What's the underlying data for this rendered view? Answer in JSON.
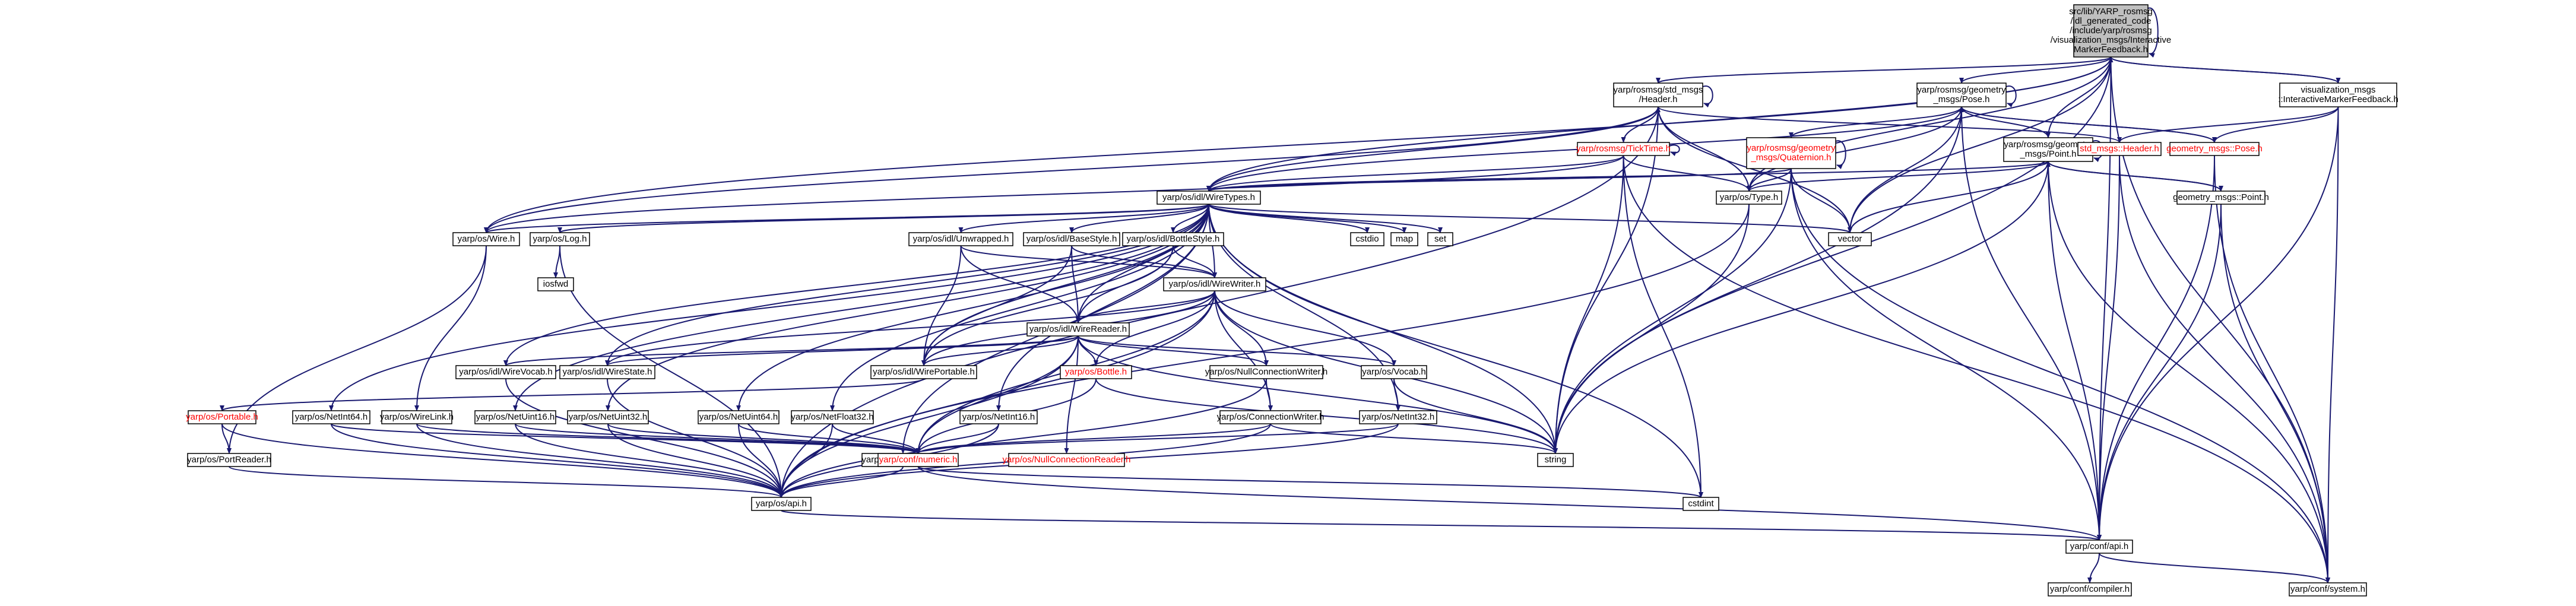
{
  "colors": {
    "edge": "#191970",
    "node_fill": "#ffffff",
    "root_fill": "#bfbfbf",
    "node_border": "#000000",
    "plain_border": "#bfbfbf",
    "red_text": "#ff0000"
  },
  "nodes": [
    {
      "id": "root",
      "lines": [
        "src/lib/YARP_rosmsg",
        "/idl_generated_code",
        "/include/yarp/rosmsg",
        "/visualization_msgs/Interactive",
        "MarkerFeedback.h"
      ],
      "style": "root"
    },
    {
      "id": "vm_imf",
      "lines": [
        "visualization_msgs",
        "::InteractiveMarkerFeedback.h"
      ],
      "style": "normal"
    },
    {
      "id": "std_header",
      "lines": [
        "yarp/rosmsg/std_msgs",
        "/Header.h"
      ],
      "style": "normal"
    },
    {
      "id": "geo_pose",
      "lines": [
        "yarp/rosmsg/geometry",
        "_msgs/Pose.h"
      ],
      "style": "normal"
    },
    {
      "id": "geo_point",
      "lines": [
        "yarp/rosmsg/geometry",
        "_msgs/Point.h"
      ],
      "style": "normal"
    },
    {
      "id": "geo_quat",
      "lines": [
        "yarp/rosmsg/geometry",
        "_msgs/Quaternion.h"
      ],
      "style": "red"
    },
    {
      "id": "ticktime",
      "lines": [
        "yarp/rosmsg/TickTime.h"
      ],
      "style": "red"
    },
    {
      "id": "std_msgs_header",
      "lines": [
        "std_msgs::Header.h"
      ],
      "style": "red"
    },
    {
      "id": "gm_pose",
      "lines": [
        "geometry_msgs::Pose.h"
      ],
      "style": "red"
    },
    {
      "id": "gm_point",
      "lines": [
        "geometry_msgs::Point.h"
      ],
      "style": "normal"
    },
    {
      "id": "type",
      "lines": [
        "yarp/os/Type.h"
      ],
      "style": "normal"
    },
    {
      "id": "vector",
      "lines": [
        "vector"
      ],
      "style": "plain"
    },
    {
      "id": "wiretypes",
      "lines": [
        "yarp/os/idl/WireTypes.h"
      ],
      "style": "normal"
    },
    {
      "id": "wire",
      "lines": [
        "yarp/os/Wire.h"
      ],
      "style": "normal"
    },
    {
      "id": "log",
      "lines": [
        "yarp/os/Log.h"
      ],
      "style": "normal"
    },
    {
      "id": "iosfwd",
      "lines": [
        "iosfwd"
      ],
      "style": "plain"
    },
    {
      "id": "unwrapped",
      "lines": [
        "yarp/os/idl/Unwrapped.h"
      ],
      "style": "normal"
    },
    {
      "id": "basestyle",
      "lines": [
        "yarp/os/idl/BaseStyle.h"
      ],
      "style": "normal"
    },
    {
      "id": "bottlestyle",
      "lines": [
        "yarp/os/idl/BottleStyle.h"
      ],
      "style": "normal"
    },
    {
      "id": "cstdio",
      "lines": [
        "cstdio"
      ],
      "style": "plain"
    },
    {
      "id": "map",
      "lines": [
        "map"
      ],
      "style": "plain"
    },
    {
      "id": "set",
      "lines": [
        "set"
      ],
      "style": "plain"
    },
    {
      "id": "wirewriter",
      "lines": [
        "yarp/os/idl/WireWriter.h"
      ],
      "style": "normal"
    },
    {
      "id": "wirereader",
      "lines": [
        "yarp/os/idl/WireReader.h"
      ],
      "style": "normal"
    },
    {
      "id": "wirevocab",
      "lines": [
        "yarp/os/idl/WireVocab.h"
      ],
      "style": "normal"
    },
    {
      "id": "wirestate",
      "lines": [
        "yarp/os/idl/WireState.h"
      ],
      "style": "normal"
    },
    {
      "id": "wireportable",
      "lines": [
        "yarp/os/idl/WirePortable.h"
      ],
      "style": "normal"
    },
    {
      "id": "bottle",
      "lines": [
        "yarp/os/Bottle.h"
      ],
      "style": "red"
    },
    {
      "id": "nullconnwriter",
      "lines": [
        "yarp/os/NullConnectionWriter.h"
      ],
      "style": "normal"
    },
    {
      "id": "vocab",
      "lines": [
        "yarp/os/Vocab.h"
      ],
      "style": "normal"
    },
    {
      "id": "portable",
      "lines": [
        "yarp/os/Portable.h"
      ],
      "style": "red"
    },
    {
      "id": "netint64",
      "lines": [
        "yarp/os/NetInt64.h"
      ],
      "style": "normal"
    },
    {
      "id": "wirelink",
      "lines": [
        "yarp/os/WireLink.h"
      ],
      "style": "normal"
    },
    {
      "id": "netuint16",
      "lines": [
        "yarp/os/NetUint16.h"
      ],
      "style": "normal"
    },
    {
      "id": "netuint32",
      "lines": [
        "yarp/os/NetUint32.h"
      ],
      "style": "normal"
    },
    {
      "id": "netuint64",
      "lines": [
        "yarp/os/NetUint64.h"
      ],
      "style": "normal"
    },
    {
      "id": "netfloat32",
      "lines": [
        "yarp/os/NetFloat32.h"
      ],
      "style": "normal"
    },
    {
      "id": "netfloat64",
      "lines": [
        "yarp/os/NetFloat64.h"
      ],
      "style": "normal"
    },
    {
      "id": "netint16",
      "lines": [
        "yarp/os/NetInt16.h"
      ],
      "style": "normal"
    },
    {
      "id": "connwriter",
      "lines": [
        "yarp/os/ConnectionWriter.h"
      ],
      "style": "normal"
    },
    {
      "id": "netint32",
      "lines": [
        "yarp/os/NetInt32.h"
      ],
      "style": "normal"
    },
    {
      "id": "portreader",
      "lines": [
        "yarp/os/PortReader.h"
      ],
      "style": "normal"
    },
    {
      "id": "numeric",
      "lines": [
        "yarp/conf/numeric.h"
      ],
      "style": "red"
    },
    {
      "id": "nullconnreader",
      "lines": [
        "yarp/os/NullConnectionReader.h"
      ],
      "style": "red"
    },
    {
      "id": "string",
      "lines": [
        "string"
      ],
      "style": "plain"
    },
    {
      "id": "cstdint",
      "lines": [
        "cstdint"
      ],
      "style": "plain"
    },
    {
      "id": "os_api",
      "lines": [
        "yarp/os/api.h"
      ],
      "style": "normal"
    },
    {
      "id": "conf_api",
      "lines": [
        "yarp/conf/api.h"
      ],
      "style": "normal"
    },
    {
      "id": "compiler",
      "lines": [
        "yarp/conf/compiler.h"
      ],
      "style": "normal"
    },
    {
      "id": "system",
      "lines": [
        "yarp/conf/system.h"
      ],
      "style": "normal"
    }
  ],
  "edges": [
    [
      "root",
      "vm_imf"
    ],
    [
      "root",
      "std_header"
    ],
    [
      "root",
      "geo_pose"
    ],
    [
      "root",
      "geo_point"
    ],
    [
      "root",
      "type"
    ],
    [
      "root",
      "vector"
    ],
    [
      "root",
      "string"
    ],
    [
      "root",
      "wiretypes"
    ],
    [
      "root",
      "wire"
    ],
    [
      "root",
      "conf_api"
    ],
    [
      "root",
      "system"
    ],
    [
      "root",
      "root"
    ],
    [
      "vm_imf",
      "root"
    ],
    [
      "vm_imf",
      "std_msgs_header"
    ],
    [
      "vm_imf",
      "gm_pose"
    ],
    [
      "vm_imf",
      "conf_api"
    ],
    [
      "vm_imf",
      "system"
    ],
    [
      "std_header",
      "ticktime"
    ],
    [
      "std_header",
      "type"
    ],
    [
      "std_header",
      "string"
    ],
    [
      "std_header",
      "wiretypes"
    ],
    [
      "std_header",
      "wire"
    ],
    [
      "std_header",
      "vector"
    ],
    [
      "std_header",
      "std_header"
    ],
    [
      "std_header",
      "os_api"
    ],
    [
      "geo_pose",
      "geo_point"
    ],
    [
      "geo_pose",
      "geo_quat"
    ],
    [
      "geo_pose",
      "type"
    ],
    [
      "geo_pose",
      "vector"
    ],
    [
      "geo_pose",
      "string"
    ],
    [
      "geo_pose",
      "wiretypes"
    ],
    [
      "geo_pose",
      "gm_pose"
    ],
    [
      "geo_pose",
      "conf_api"
    ],
    [
      "geo_pose",
      "geo_pose"
    ],
    [
      "geo_point",
      "type"
    ],
    [
      "geo_point",
      "vector"
    ],
    [
      "geo_point",
      "string"
    ],
    [
      "geo_point",
      "wiretypes"
    ],
    [
      "geo_point",
      "gm_point"
    ],
    [
      "geo_point",
      "conf_api"
    ],
    [
      "geo_point",
      "system"
    ],
    [
      "geo_point",
      "geo_point"
    ],
    [
      "geo_quat",
      "type"
    ],
    [
      "geo_quat",
      "vector"
    ],
    [
      "geo_quat",
      "string"
    ],
    [
      "geo_quat",
      "wiretypes"
    ],
    [
      "geo_quat",
      "conf_api"
    ],
    [
      "geo_quat",
      "system"
    ],
    [
      "geo_quat",
      "geo_quat"
    ],
    [
      "ticktime",
      "type"
    ],
    [
      "ticktime",
      "string"
    ],
    [
      "ticktime",
      "wiretypes"
    ],
    [
      "ticktime",
      "wire"
    ],
    [
      "ticktime",
      "cstdint"
    ],
    [
      "ticktime",
      "system"
    ],
    [
      "ticktime",
      "ticktime"
    ],
    [
      "std_msgs_header",
      "std_header"
    ],
    [
      "std_msgs_header",
      "conf_api"
    ],
    [
      "std_msgs_header",
      "system"
    ],
    [
      "gm_pose",
      "geo_pose"
    ],
    [
      "gm_pose",
      "conf_api"
    ],
    [
      "gm_pose",
      "system"
    ],
    [
      "gm_point",
      "geo_point"
    ],
    [
      "gm_point",
      "conf_api"
    ],
    [
      "gm_point",
      "system"
    ],
    [
      "type",
      "string"
    ],
    [
      "type",
      "os_api"
    ],
    [
      "wiretypes",
      "wire"
    ],
    [
      "wiretypes",
      "log"
    ],
    [
      "wiretypes",
      "unwrapped"
    ],
    [
      "wiretypes",
      "basestyle"
    ],
    [
      "wiretypes",
      "bottlestyle"
    ],
    [
      "wiretypes",
      "cstdio"
    ],
    [
      "wiretypes",
      "map"
    ],
    [
      "wiretypes",
      "set"
    ],
    [
      "wiretypes",
      "string"
    ],
    [
      "wiretypes",
      "vector"
    ],
    [
      "wiretypes",
      "wirewriter"
    ],
    [
      "wiretypes",
      "wirereader"
    ],
    [
      "wiretypes",
      "wirevocab"
    ],
    [
      "wiretypes",
      "wirestate"
    ],
    [
      "wiretypes",
      "wireportable"
    ],
    [
      "wiretypes",
      "netint64"
    ],
    [
      "wiretypes",
      "netuint16"
    ],
    [
      "wiretypes",
      "netuint32"
    ],
    [
      "wiretypes",
      "netuint64"
    ],
    [
      "wiretypes",
      "netfloat32"
    ],
    [
      "wiretypes",
      "netfloat64"
    ],
    [
      "wiretypes",
      "netint16"
    ],
    [
      "wiretypes",
      "netint32"
    ],
    [
      "wiretypes",
      "cstdint"
    ],
    [
      "wire",
      "wirelink"
    ],
    [
      "wire",
      "portreader"
    ],
    [
      "log",
      "iosfwd"
    ],
    [
      "log",
      "os_api"
    ],
    [
      "unwrapped",
      "wirewriter"
    ],
    [
      "unwrapped",
      "wirereader"
    ],
    [
      "unwrapped",
      "wireportable"
    ],
    [
      "basestyle",
      "wirewriter"
    ],
    [
      "basestyle",
      "wirereader"
    ],
    [
      "basestyle",
      "wireportable"
    ],
    [
      "bottlestyle",
      "wirewriter"
    ],
    [
      "bottlestyle",
      "wirereader"
    ],
    [
      "bottlestyle",
      "wireportable"
    ],
    [
      "wirewriter",
      "wirereader"
    ],
    [
      "wirewriter",
      "wireportable"
    ],
    [
      "wirewriter",
      "bottle"
    ],
    [
      "wirewriter",
      "nullconnwriter"
    ],
    [
      "wirewriter",
      "vocab"
    ],
    [
      "wirewriter",
      "string"
    ],
    [
      "wirewriter",
      "numeric"
    ],
    [
      "wirewriter",
      "os_api"
    ],
    [
      "wirewriter",
      "connwriter"
    ],
    [
      "wirewriter",
      "wirestate"
    ],
    [
      "wirereader",
      "wirevocab"
    ],
    [
      "wirereader",
      "wirestate"
    ],
    [
      "wirereader",
      "wireportable"
    ],
    [
      "wirereader",
      "bottle"
    ],
    [
      "wirereader",
      "nullconnwriter"
    ],
    [
      "wirereader",
      "vocab"
    ],
    [
      "wirereader",
      "string"
    ],
    [
      "wirereader",
      "numeric"
    ],
    [
      "wirereader",
      "nullconnreader"
    ],
    [
      "wirereader",
      "os_api"
    ],
    [
      "wirevocab",
      "os_api"
    ],
    [
      "wirestate",
      "os_api"
    ],
    [
      "wireportable",
      "portable"
    ],
    [
      "bottle",
      "numeric"
    ],
    [
      "bottle",
      "string"
    ],
    [
      "nullconnwriter",
      "connwriter"
    ],
    [
      "nullconnwriter",
      "os_api"
    ],
    [
      "vocab",
      "string"
    ],
    [
      "vocab",
      "netint32"
    ],
    [
      "portable",
      "portreader"
    ],
    [
      "portable",
      "os_api"
    ],
    [
      "netint64",
      "numeric"
    ],
    [
      "netint64",
      "os_api"
    ],
    [
      "wirelink",
      "os_api"
    ],
    [
      "wirelink",
      "numeric"
    ],
    [
      "netuint16",
      "numeric"
    ],
    [
      "netuint16",
      "os_api"
    ],
    [
      "netuint32",
      "numeric"
    ],
    [
      "netuint32",
      "os_api"
    ],
    [
      "netuint64",
      "numeric"
    ],
    [
      "netuint64",
      "os_api"
    ],
    [
      "netfloat32",
      "numeric"
    ],
    [
      "netfloat32",
      "os_api"
    ],
    [
      "netfloat64",
      "numeric"
    ],
    [
      "netfloat64",
      "os_api"
    ],
    [
      "netint16",
      "numeric"
    ],
    [
      "netint16",
      "os_api"
    ],
    [
      "connwriter",
      "numeric"
    ],
    [
      "connwriter",
      "string"
    ],
    [
      "connwriter",
      "os_api"
    ],
    [
      "netint32",
      "numeric"
    ],
    [
      "netint32",
      "os_api"
    ],
    [
      "portreader",
      "os_api"
    ],
    [
      "numeric",
      "cstdint"
    ],
    [
      "numeric",
      "conf_api"
    ],
    [
      "os_api",
      "conf_api"
    ],
    [
      "conf_api",
      "compiler"
    ],
    [
      "conf_api",
      "system"
    ]
  ]
}
